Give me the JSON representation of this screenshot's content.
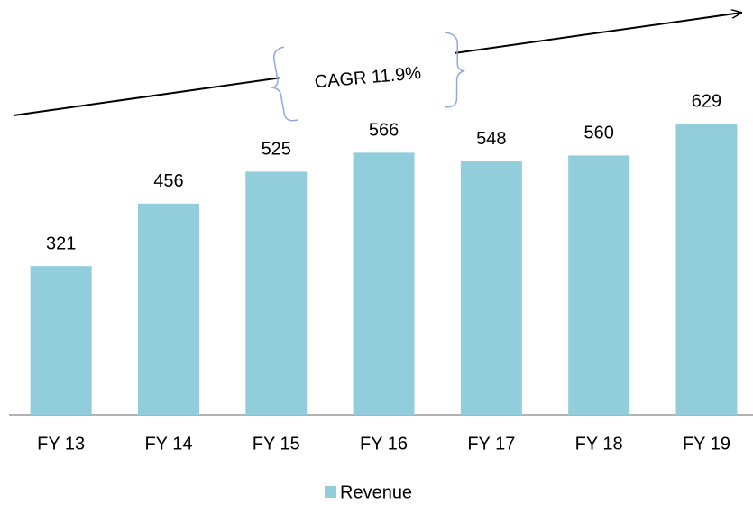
{
  "chart_data": {
    "type": "bar",
    "annotation": "CAGR 11.9%",
    "categories": [
      "FY 13",
      "FY 14",
      "FY 15",
      "FY 16",
      "FY 17",
      "FY 18",
      "FY 19"
    ],
    "series": [
      {
        "name": "Revenue",
        "color": "#92cddc",
        "values": [
          321,
          456,
          525,
          566,
          548,
          560,
          629
        ]
      }
    ],
    "legend": "bottom"
  }
}
